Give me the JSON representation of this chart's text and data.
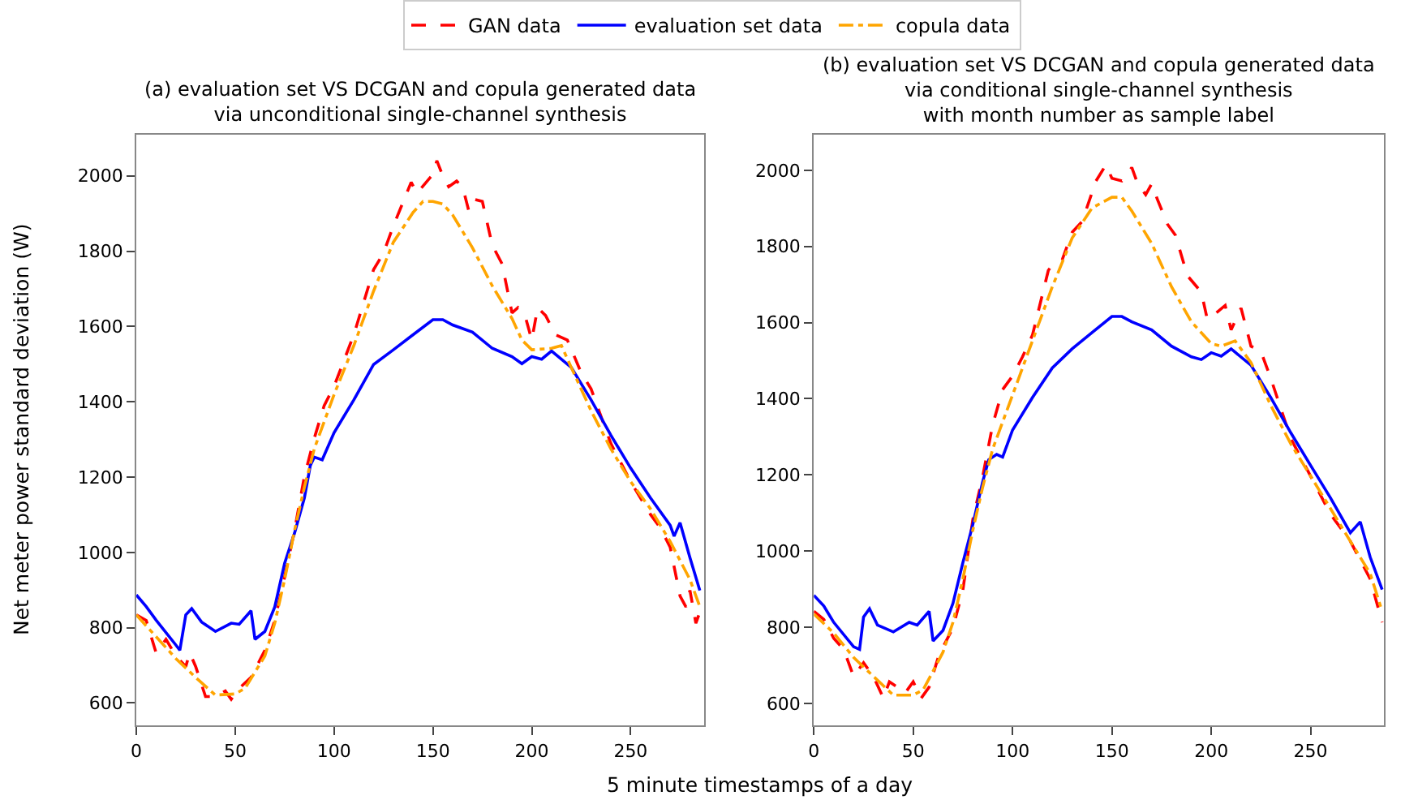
{
  "chart_data": [
    {
      "type": "line",
      "title": "(a) evaluation set VS DCGAN and copula generated data\nvia unconditional single-channel synthesis",
      "xlabel": "5 minute timestamps of a day",
      "ylabel": "Net meter power standard deviation (W)",
      "xlim": [
        0,
        287
      ],
      "xticks": [
        0,
        50,
        100,
        150,
        200,
        250
      ],
      "ylim": [
        540,
        2110
      ],
      "yticks": [
        600,
        800,
        1000,
        1200,
        1400,
        1600,
        1800,
        2000
      ],
      "legend": "top",
      "series": [
        {
          "name": "GAN data",
          "color": "#ff0000",
          "line_style": "dashed",
          "x": [
            0,
            5,
            10,
            15,
            20,
            25,
            27,
            30,
            35,
            40,
            45,
            48,
            52,
            58,
            65,
            70,
            75,
            80,
            85,
            90,
            95,
            100,
            110,
            120,
            125,
            130,
            139,
            142,
            150,
            152,
            155,
            158,
            162,
            165,
            168,
            170,
            175,
            180,
            185,
            190,
            193,
            197,
            200,
            203,
            207,
            212,
            218,
            225,
            230,
            240,
            250,
            260,
            265,
            270,
            275,
            278,
            280,
            283,
            285
          ],
          "values": [
            834,
            819,
            733,
            769,
            725,
            697,
            733,
            697,
            617,
            617,
            632,
            610,
            639,
            668,
            740,
            819,
            935,
            1058,
            1202,
            1303,
            1390,
            1441,
            1578,
            1751,
            1795,
            1867,
            1983,
            1954,
            2004,
            2040,
            2000,
            1971,
            1986,
            1971,
            1910,
            1939,
            1932,
            1816,
            1766,
            1636,
            1650,
            1621,
            1564,
            1650,
            1629,
            1578,
            1564,
            1477,
            1434,
            1289,
            1188,
            1101,
            1065,
            1014,
            884,
            855,
            899,
            812,
            841
          ]
        },
        {
          "name": "evaluation set data",
          "color": "#0000ff",
          "line_style": "solid",
          "x": [
            0,
            5,
            10,
            20,
            22,
            25,
            28,
            33,
            40,
            48,
            52,
            58,
            60,
            65,
            70,
            75,
            80,
            85,
            88,
            90,
            94,
            100,
            110,
            120,
            130,
            140,
            150,
            155,
            160,
            170,
            180,
            190,
            195,
            200,
            205,
            210,
            220,
            230,
            240,
            250,
            260,
            270,
            272,
            275,
            280,
            285
          ],
          "values": [
            887,
            856,
            820,
            754,
            740,
            834,
            851,
            815,
            790,
            812,
            809,
            845,
            769,
            790,
            855,
            971,
            1051,
            1145,
            1231,
            1253,
            1246,
            1318,
            1405,
            1499,
            1538,
            1578,
            1618,
            1618,
            1604,
            1585,
            1542,
            1520,
            1501,
            1520,
            1513,
            1535,
            1491,
            1405,
            1311,
            1224,
            1145,
            1072,
            1043,
            1079,
            986,
            899
          ]
        },
        {
          "name": "copula data",
          "color": "#ffa500",
          "line_style": "dashdot",
          "x": [
            0,
            10,
            20,
            30,
            40,
            50,
            55,
            60,
            65,
            70,
            75,
            80,
            85,
            90,
            100,
            110,
            120,
            130,
            140,
            145,
            150,
            155,
            160,
            170,
            180,
            190,
            195,
            200,
            210,
            215,
            220,
            230,
            240,
            250,
            260,
            270,
            280,
            285
          ],
          "values": [
            834,
            776,
            718,
            668,
            621,
            624,
            639,
            682,
            725,
            812,
            928,
            1058,
            1173,
            1275,
            1419,
            1549,
            1694,
            1824,
            1903,
            1932,
            1932,
            1925,
            1896,
            1809,
            1708,
            1621,
            1564,
            1538,
            1542,
            1549,
            1491,
            1376,
            1275,
            1188,
            1116,
            1029,
            928,
            856
          ]
        }
      ]
    },
    {
      "type": "line",
      "title": "(b) evaluation set VS DCGAN and copula generated data\nvia conditional single-channel synthesis\nwith month number as sample label",
      "xlim": [
        0,
        287
      ],
      "xticks": [
        0,
        50,
        100,
        150,
        200,
        250
      ],
      "ylim": [
        542,
        2094
      ],
      "yticks": [
        600,
        800,
        1000,
        1200,
        1400,
        1600,
        1800,
        2000
      ],
      "series": [
        {
          "color": "#ff0000",
          "line_style": "dashed",
          "x": [
            0,
            5,
            10,
            15,
            20,
            25,
            30,
            35,
            38,
            42,
            46,
            50,
            54,
            58,
            63,
            70,
            75,
            80,
            85,
            90,
            95,
            100,
            105,
            110,
            118,
            120,
            125,
            130,
            135,
            142,
            147,
            150,
            155,
            160,
            163,
            167,
            170,
            173,
            178,
            182,
            188,
            195,
            198,
            202,
            207,
            210,
            215,
            220,
            225,
            230,
            240,
            250,
            260,
            270,
            280,
            286
          ],
          "values": [
            842,
            821,
            771,
            742,
            671,
            707,
            671,
            614,
            657,
            643,
            628,
            657,
            614,
            643,
            728,
            799,
            898,
            1083,
            1197,
            1332,
            1424,
            1460,
            1510,
            1567,
            1737,
            1751,
            1765,
            1837,
            1865,
            1972,
            2014,
            1979,
            1972,
            2007,
            1964,
            1936,
            1964,
            1922,
            1858,
            1829,
            1723,
            1680,
            1609,
            1623,
            1645,
            1581,
            1638,
            1538,
            1524,
            1453,
            1296,
            1197,
            1097,
            1026,
            927,
            813
          ]
        },
        {
          "color": "#0000ff",
          "line_style": "solid",
          "x": [
            0,
            5,
            10,
            20,
            23,
            25,
            28,
            32,
            40,
            48,
            52,
            58,
            60,
            65,
            70,
            75,
            80,
            85,
            88,
            92,
            95,
            100,
            110,
            120,
            130,
            140,
            150,
            155,
            160,
            170,
            180,
            190,
            195,
            200,
            205,
            210,
            220,
            230,
            240,
            250,
            260,
            270,
            275,
            280,
            286
          ],
          "values": [
            884,
            856,
            813,
            749,
            742,
            827,
            849,
            806,
            788,
            813,
            806,
            842,
            764,
            792,
            863,
            970,
            1070,
            1183,
            1240,
            1254,
            1247,
            1318,
            1403,
            1481,
            1531,
            1574,
            1616,
            1616,
            1602,
            1581,
            1538,
            1510,
            1503,
            1521,
            1512,
            1531,
            1488,
            1403,
            1311,
            1225,
            1140,
            1048,
            1077,
            984,
            899
          ]
        },
        {
          "color": "#ffa500",
          "line_style": "dashdot",
          "x": [
            0,
            10,
            20,
            30,
            40,
            50,
            55,
            60,
            65,
            70,
            75,
            80,
            85,
            90,
            100,
            110,
            120,
            130,
            140,
            150,
            155,
            160,
            170,
            180,
            190,
            200,
            205,
            212,
            220,
            230,
            240,
            250,
            260,
            270,
            280,
            286
          ],
          "values": [
            835,
            785,
            721,
            671,
            622,
            622,
            636,
            685,
            735,
            813,
            927,
            1055,
            1169,
            1268,
            1410,
            1552,
            1694,
            1822,
            1901,
            1929,
            1929,
            1893,
            1808,
            1694,
            1602,
            1545,
            1538,
            1552,
            1495,
            1382,
            1282,
            1197,
            1112,
            1026,
            941,
            842
          ]
        }
      ]
    }
  ]
}
